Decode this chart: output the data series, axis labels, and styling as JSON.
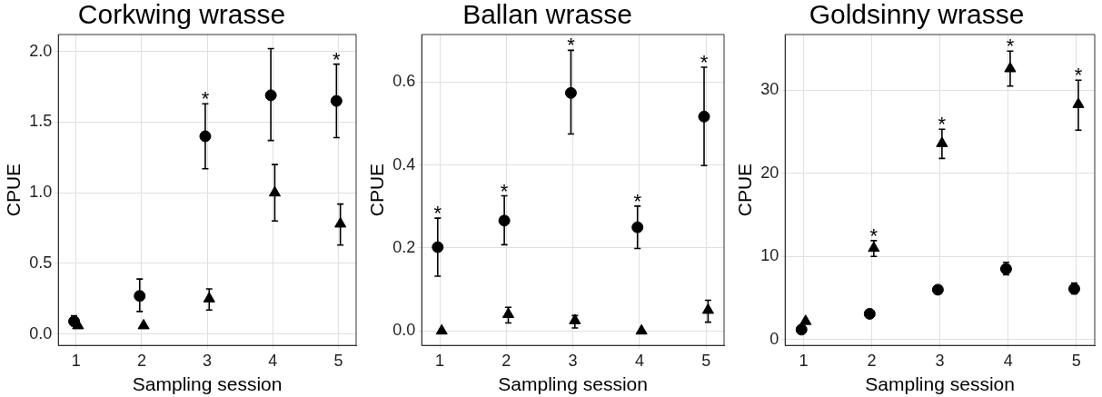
{
  "chart_data": [
    {
      "type": "scatter",
      "title": "Corkwing wrasse",
      "xlabel": "Sampling session",
      "ylabel": "CPUE",
      "xlim": [
        0.73,
        5.27
      ],
      "xticks": [
        1,
        2,
        3,
        4,
        5
      ],
      "ylim": [
        -0.08,
        2.12
      ],
      "yticks": [
        {
          "value": 0,
          "label": "0.0"
        },
        {
          "value": 0.5,
          "label": "0.5"
        },
        {
          "value": 1,
          "label": "1.0"
        },
        {
          "value": 1.5,
          "label": "1.5"
        },
        {
          "value": 2,
          "label": "2.0"
        }
      ],
      "grid": true,
      "legend": false,
      "series": [
        {
          "color": "#000000",
          "marker": "circle",
          "x": [
            0.97,
            1.97,
            2.97,
            3.97,
            4.97
          ],
          "values": [
            0.09,
            0.27,
            1.4,
            1.69,
            1.65
          ],
          "errors": [
            [
              0.06,
              0.13
            ],
            [
              0.16,
              0.39
            ],
            [
              1.17,
              1.63
            ],
            [
              1.37,
              2.02
            ],
            [
              1.39,
              1.91
            ]
          ]
        },
        {
          "color": "#000000",
          "marker": "triangle",
          "x": [
            1.03,
            2.03,
            3.03,
            4.03,
            5.03
          ],
          "values": [
            0.06,
            0.06,
            0.25,
            1.0,
            0.78
          ],
          "errors": [
            null,
            null,
            [
              0.17,
              0.32
            ],
            [
              0.8,
              1.2
            ],
            [
              0.63,
              0.92
            ]
          ]
        }
      ],
      "annotations": [
        {
          "text": "*",
          "x": 2.97,
          "y": 1.4
        },
        {
          "text": "*",
          "x": 4.97,
          "y": 1.65
        }
      ]
    },
    {
      "type": "scatter",
      "title": "Ballan wrasse",
      "xlabel": "Sampling session",
      "ylabel": "CPUE",
      "xlim": [
        0.73,
        5.27
      ],
      "xticks": [
        1,
        2,
        3,
        4,
        5
      ],
      "ylim": [
        -0.035,
        0.715
      ],
      "yticks": [
        {
          "value": 0,
          "label": "0.0"
        },
        {
          "value": 0.2,
          "label": "0.2"
        },
        {
          "value": 0.4,
          "label": "0.4"
        },
        {
          "value": 0.6,
          "label": "0.6"
        }
      ],
      "grid": true,
      "legend": false,
      "series": [
        {
          "color": "#000000",
          "marker": "circle",
          "x": [
            0.97,
            1.97,
            2.97,
            3.97,
            4.97
          ],
          "values": [
            0.202,
            0.266,
            0.574,
            0.25,
            0.517
          ],
          "errors": [
            [
              0.132,
              0.272
            ],
            [
              0.208,
              0.326
            ],
            [
              0.475,
              0.677
            ],
            [
              0.199,
              0.301
            ],
            [
              0.399,
              0.636
            ]
          ]
        },
        {
          "color": "#000000",
          "marker": "triangle",
          "x": [
            1.03,
            2.03,
            3.03,
            4.03,
            5.03
          ],
          "values": [
            0,
            0.04,
            0.025,
            0,
            0.05
          ],
          "errors": [
            null,
            [
              0.019,
              0.057
            ],
            [
              0.007,
              0.037
            ],
            null,
            [
              0.021,
              0.074
            ]
          ]
        }
      ],
      "annotations": [
        {
          "text": "*",
          "x": 0.97,
          "y": 0.202
        },
        {
          "text": "*",
          "x": 1.97,
          "y": 0.266
        },
        {
          "text": "*",
          "x": 2.97,
          "y": 0.574
        },
        {
          "text": "*",
          "x": 3.97,
          "y": 0.25
        },
        {
          "text": "*",
          "x": 4.97,
          "y": 0.517
        }
      ]
    },
    {
      "type": "scatter",
      "title": "Goldsinny wrasse",
      "xlabel": "Sampling session",
      "ylabel": "CPUE",
      "xlim": [
        0.73,
        5.27
      ],
      "xticks": [
        1,
        2,
        3,
        4,
        5
      ],
      "ylim": [
        -0.7,
        36.7
      ],
      "yticks": [
        0,
        10,
        20,
        30
      ],
      "grid": true,
      "legend": false,
      "series": [
        {
          "color": "#000000",
          "marker": "circle",
          "x": [
            0.97,
            1.97,
            2.97,
            3.97,
            4.97
          ],
          "values": [
            1.2,
            3.1,
            6.0,
            8.5,
            6.1
          ],
          "errors": [
            null,
            null,
            [
              5.6,
              6.4
            ],
            [
              7.8,
              9.3
            ],
            [
              5.5,
              6.8
            ]
          ]
        },
        {
          "color": "#000000",
          "marker": "triangle",
          "x": [
            1.03,
            2.03,
            3.03,
            4.03,
            5.03
          ],
          "values": [
            2.2,
            11.0,
            23.6,
            32.6,
            28.3
          ],
          "errors": [
            null,
            [
              10.0,
              11.9
            ],
            [
              21.8,
              25.3
            ],
            [
              30.5,
              34.7
            ],
            [
              25.2,
              31.2
            ]
          ]
        }
      ],
      "annotations": [
        {
          "text": "*",
          "x": 2.03,
          "y": 11.0
        },
        {
          "text": "*",
          "x": 3.03,
          "y": 23.6
        },
        {
          "text": "*",
          "x": 4.03,
          "y": 32.6
        },
        {
          "text": "*",
          "x": 5.03,
          "y": 28.3
        }
      ]
    }
  ]
}
